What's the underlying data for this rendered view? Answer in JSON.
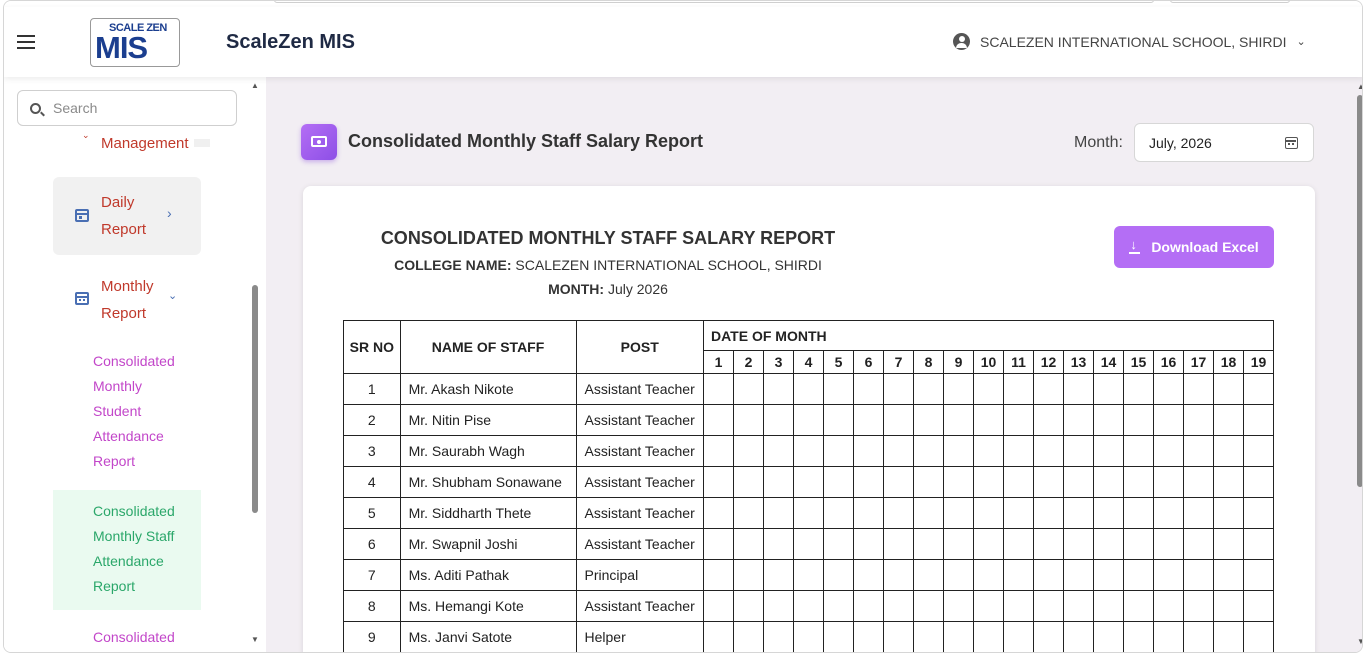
{
  "header": {
    "logo_top": "SCALE ZEN",
    "logo_big": "MIS",
    "app_title": "ScaleZen MIS",
    "school_name": "SCALEZEN INTERNATIONAL SCHOOL, SHIRDI"
  },
  "sidebar": {
    "search_placeholder": "Search",
    "partial_item": "Management",
    "daily": {
      "line1": "Daily",
      "line2": "Report"
    },
    "monthly": {
      "line1": "Monthly",
      "line2": "Report"
    },
    "sub_items": [
      {
        "lines": [
          "Consolidated",
          "Monthly",
          "Student",
          "Attendance",
          "Report"
        ]
      },
      {
        "lines": [
          "Consolidated",
          "Monthly Staff",
          "Attendance",
          "Report"
        ]
      },
      {
        "lines": [
          "Consolidated"
        ]
      }
    ]
  },
  "page": {
    "title": "Consolidated Monthly Staff Salary Report",
    "month_label": "Month:",
    "month_value": "July, 2026"
  },
  "report": {
    "title": "CONSOLIDATED MONTHLY STAFF SALARY REPORT",
    "college_label": "COLLEGE NAME:",
    "college_value": "SCALEZEN INTERNATIONAL SCHOOL, SHIRDI",
    "month_label": "MONTH:",
    "month_value": "July 2026",
    "download_label": "Download Excel",
    "columns": {
      "sr": "SR NO",
      "name": "NAME OF STAFF",
      "post": "POST",
      "date_group": "DATE OF MONTH"
    },
    "days": [
      "1",
      "2",
      "3",
      "4",
      "5",
      "6",
      "7",
      "8",
      "9",
      "10",
      "11",
      "12",
      "13",
      "14",
      "15",
      "16",
      "17",
      "18",
      "19"
    ],
    "rows": [
      {
        "sr": "1",
        "name": "Mr. Akash Nikote",
        "post": "Assistant Teacher"
      },
      {
        "sr": "2",
        "name": "Mr. Nitin Pise",
        "post": "Assistant Teacher"
      },
      {
        "sr": "3",
        "name": "Mr. Saurabh Wagh",
        "post": "Assistant Teacher"
      },
      {
        "sr": "4",
        "name": "Mr. Shubham Sonawane",
        "post": "Assistant Teacher"
      },
      {
        "sr": "5",
        "name": "Mr. Siddharth Thete",
        "post": "Assistant Teacher"
      },
      {
        "sr": "6",
        "name": "Mr. Swapnil Joshi",
        "post": "Assistant Teacher"
      },
      {
        "sr": "7",
        "name": "Ms. Aditi Pathak",
        "post": "Principal"
      },
      {
        "sr": "8",
        "name": "Ms. Hemangi Kote",
        "post": "Assistant Teacher"
      },
      {
        "sr": "9",
        "name": "Ms. Janvi Satote",
        "post": "Helper"
      }
    ]
  },
  "icons": {
    "menu": "hamburger-icon",
    "account": "account-circle-icon",
    "search": "search-icon",
    "calendar": "calendar-icon",
    "salary": "money-bill-icon",
    "download": "download-icon"
  },
  "colors": {
    "accent": "#b46ef5",
    "nav_red": "#c0392b",
    "sub_magenta": "#c246c9",
    "active_green": "#2ba76a",
    "main_bg": "#f2eef3"
  }
}
